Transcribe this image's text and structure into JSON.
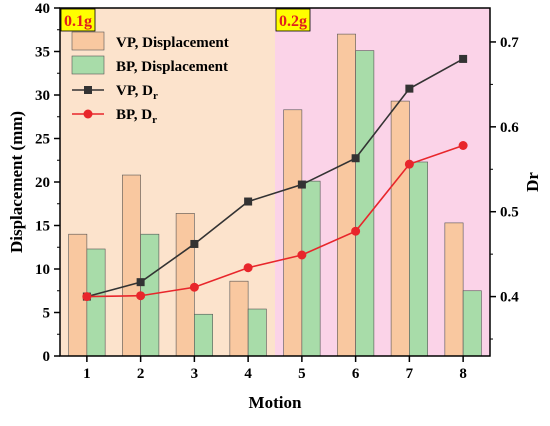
{
  "chart_data": {
    "type": "bar",
    "x_label": "Motion",
    "y_left_label": "Displacement (mm)",
    "y_right_label": "Dr",
    "y_left_lim": [
      0,
      40
    ],
    "y_right_lim": [
      0.33,
      0.74
    ],
    "y_left_ticks": [
      "0",
      "5",
      "10",
      "15",
      "20",
      "25",
      "30",
      "35",
      "40"
    ],
    "y_right_ticks": [
      "0.4",
      "0.5",
      "0.6",
      "0.7"
    ],
    "categories": [
      "1",
      "2",
      "3",
      "4",
      "5",
      "6",
      "7",
      "8"
    ],
    "regions": [
      {
        "label": "0.1g",
        "from": 0.5,
        "to": 4.5,
        "color": "#fce3cc"
      },
      {
        "label": "0.2g",
        "from": 4.5,
        "to": 8.5,
        "color": "#fbd3e8"
      }
    ],
    "bar_series": [
      {
        "name": "VP, Displacement",
        "color": "#f9c8a0",
        "values": [
          14.0,
          20.8,
          16.4,
          8.6,
          28.3,
          37.0,
          29.3,
          15.3
        ]
      },
      {
        "name": "BP, Displacement",
        "color": "#a8dca9",
        "values": [
          12.3,
          14.0,
          4.8,
          5.4,
          20.1,
          35.1,
          22.3,
          7.5
        ]
      }
    ],
    "line_series": [
      {
        "name": "VP, D",
        "name_sub": "r",
        "color": "#333333",
        "marker": "square",
        "values": [
          0.4,
          0.417,
          0.462,
          0.512,
          0.532,
          0.563,
          0.645,
          0.68
        ]
      },
      {
        "name": "BP, D",
        "name_sub": "r",
        "color": "#e8262b",
        "marker": "circle",
        "values": [
          0.4,
          0.401,
          0.411,
          0.434,
          0.449,
          0.477,
          0.556,
          0.578
        ]
      }
    ],
    "legend_position": "top-left",
    "grid": false
  }
}
